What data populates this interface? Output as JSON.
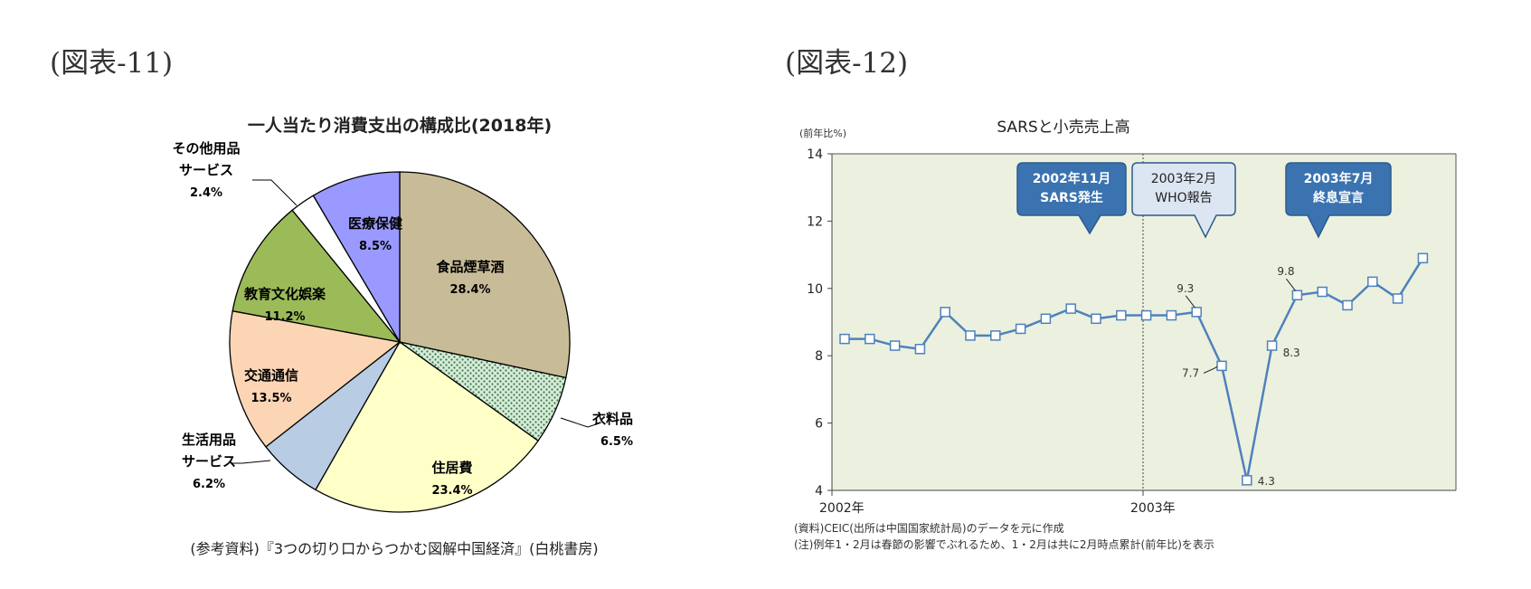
{
  "figures": {
    "left_label": "(図表-11)",
    "right_label": "(図表-12)"
  },
  "pie": {
    "source": "(参考資料)『3つの切り口からつかむ図解中国経済』(白桃書房)"
  },
  "line": {
    "notes": [
      "(資料)CEIC(出所は中国国家統計局)のデータを元に作成",
      "(注)例年1・2月は春節の影響でぶれるため、1・2月は共に2月時点累計(前年比)を表示"
    ],
    "callouts": [
      {
        "lines": [
          "2002年11月",
          "SARS発生"
        ],
        "fill": "#3a73b0",
        "text_color": "#ffffff"
      },
      {
        "lines": [
          "2003年2月",
          "WHO報告"
        ],
        "fill": "#dce6f2",
        "text_color": "#222222"
      },
      {
        "lines": [
          "2003年7月",
          "終息宣言"
        ],
        "fill": "#3a73b0",
        "text_color": "#ffffff"
      }
    ],
    "point_labels": [
      "9.3",
      "7.7",
      "4.3",
      "8.3",
      "9.8"
    ]
  },
  "chart_data": [
    {
      "type": "pie",
      "title": "一人当たり消費支出の構成比(2018年)",
      "slices": [
        {
          "label": "食品煙草酒",
          "value": 28.4,
          "value_label": "28.4%",
          "color": "#c8bc98",
          "pattern": "none"
        },
        {
          "label": "衣料品",
          "value": 6.5,
          "value_label": "6.5%",
          "color": "#d7ecd9",
          "pattern": "dots"
        },
        {
          "label": "住居費",
          "value": 23.4,
          "value_label": "23.4%",
          "color": "#ffffc8",
          "pattern": "none"
        },
        {
          "label": "生活用品サービス",
          "label_lines": [
            "生活用品",
            "サービス"
          ],
          "value": 6.2,
          "value_label": "6.2%",
          "color": "#b8cce4",
          "pattern": "none"
        },
        {
          "label": "交通通信",
          "value": 13.5,
          "value_label": "13.5%",
          "color": "#fcd5b5",
          "pattern": "none"
        },
        {
          "label": "教育文化娯楽",
          "value": 11.2,
          "value_label": "11.2%",
          "color": "#9bbb59",
          "pattern": "none"
        },
        {
          "label": "その他用品サービス",
          "label_lines": [
            "その他用品",
            "サービス"
          ],
          "value": 2.4,
          "value_label": "2.4%",
          "color": "#ffffff",
          "pattern": "none"
        },
        {
          "label": "医療保健",
          "value": 8.5,
          "value_label": "8.5%",
          "color": "#9999ff",
          "pattern": "none"
        }
      ]
    },
    {
      "type": "line",
      "title": "SARSと小売売上高",
      "ylabel": "(前年比%)",
      "xlabel": "",
      "ylim": [
        4,
        14
      ],
      "yticks": [
        4,
        6,
        8,
        10,
        12,
        14
      ],
      "x_tick_labels": [
        "2002年",
        "2003年"
      ],
      "grid": false,
      "plot_background": "#ebf1de",
      "series": [
        {
          "color": "#4f81bd",
          "marker": "square-open",
          "values": [
            8.5,
            8.5,
            8.3,
            8.2,
            9.3,
            8.6,
            8.6,
            8.8,
            9.1,
            9.4,
            9.1,
            9.2,
            9.2,
            9.2,
            9.3,
            7.7,
            4.3,
            8.3,
            9.8,
            9.9,
            9.5,
            10.2,
            9.7,
            10.9
          ]
        }
      ]
    }
  ]
}
